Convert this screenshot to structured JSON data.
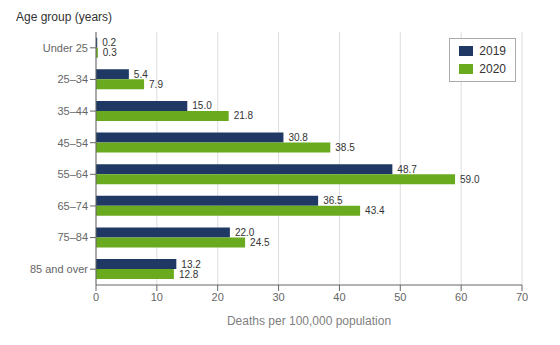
{
  "chart_data": {
    "type": "bar",
    "orientation": "horizontal",
    "categories": [
      "Under 25",
      "25–34",
      "35–44",
      "45–54",
      "55–64",
      "65–74",
      "75–84",
      "85 and over"
    ],
    "series": [
      {
        "name": "2019",
        "color": "#1f3864",
        "values": [
          0.2,
          5.4,
          15.0,
          30.8,
          48.7,
          36.5,
          22.0,
          13.2
        ],
        "value_labels": [
          "0.2",
          "5.4",
          "15.0",
          "30.8",
          "48.7",
          "36.5",
          "22.0",
          "13.2"
        ]
      },
      {
        "name": "2020",
        "color": "#6aaa1e",
        "values": [
          0.3,
          7.9,
          21.8,
          38.5,
          59.0,
          43.4,
          24.5,
          12.8
        ],
        "value_labels": [
          "0.3",
          "7.9",
          "21.8",
          "38.5",
          "59.0",
          "43.4",
          "24.5",
          "12.8"
        ]
      }
    ],
    "xlabel": "Deaths per 100,000 population",
    "ylabel": "Age group (years)",
    "xlim": [
      0,
      70
    ],
    "xticks": [
      0,
      10,
      20,
      30,
      40,
      50,
      60,
      70
    ],
    "grid": true,
    "legend": "upper right",
    "data_labels": true
  }
}
